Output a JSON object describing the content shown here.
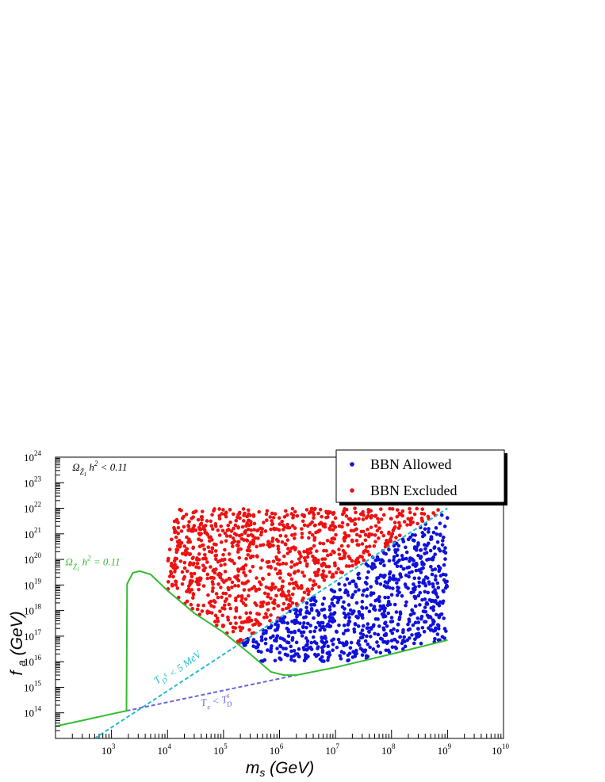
{
  "chart_data": {
    "type": "scatter",
    "title": "",
    "xlabel": "m_s (GeV)",
    "ylabel": "f_a (GeV)",
    "x_scale": "log",
    "y_scale": "log",
    "xlim": [
      100,
      10000000000
    ],
    "ylim": [
      10000000000000,
      1e+24
    ],
    "grid": false,
    "legend_position": "top-right",
    "x_ticks": [
      {
        "base": "10",
        "exp": "3",
        "value": 1000
      },
      {
        "base": "10",
        "exp": "4",
        "value": 10000
      },
      {
        "base": "10",
        "exp": "5",
        "value": 100000
      },
      {
        "base": "10",
        "exp": "6",
        "value": 1000000
      },
      {
        "base": "10",
        "exp": "7",
        "value": 10000000
      },
      {
        "base": "10",
        "exp": "8",
        "value": 100000000
      },
      {
        "base": "10",
        "exp": "9",
        "value": 1000000000
      },
      {
        "base": "10",
        "exp": "10",
        "value": 10000000000
      }
    ],
    "y_ticks": [
      {
        "base": "10",
        "exp": "14",
        "value": 100000000000000.0
      },
      {
        "base": "10",
        "exp": "15",
        "value": 1000000000000000.0
      },
      {
        "base": "10",
        "exp": "16",
        "value": 1e+16
      },
      {
        "base": "10",
        "exp": "17",
        "value": 1e+17
      },
      {
        "base": "10",
        "exp": "18",
        "value": 1e+18
      },
      {
        "base": "10",
        "exp": "19",
        "value": 1e+19
      },
      {
        "base": "10",
        "exp": "20",
        "value": 1e+20
      },
      {
        "base": "10",
        "exp": "21",
        "value": 1e+21
      },
      {
        "base": "10",
        "exp": "22",
        "value": 1e+22
      },
      {
        "base": "10",
        "exp": "23",
        "value": 1e+23
      },
      {
        "base": "10",
        "exp": "24",
        "value": 1e+24
      }
    ],
    "colors": {
      "allowed": "#1010dd",
      "excluded": "#ee1111",
      "relic_curve": "#33bb33",
      "td_line": "#22bbcc",
      "te_line": "#6666dd"
    },
    "series": [
      {
        "name": "BBN Allowed",
        "marker": "dot",
        "color": "#1010dd",
        "region": {
          "x_range": [
            200000,
            1000000000
          ],
          "y_range": [
            1e+16,
            1e+22
          ],
          "lower_boundary": "relic_curve",
          "upper_boundary": "td_line"
        }
      },
      {
        "name": "BBN Excluded",
        "marker": "dot",
        "color": "#ee1111",
        "region": {
          "x_range": [
            10000,
            1000000000
          ],
          "y_range": [
            1e+16,
            1e+22
          ],
          "lower_boundary": "relic_curve"
        }
      }
    ],
    "curves": {
      "relic": {
        "line_style": "solid",
        "color": "#33bb33",
        "points": [
          [
            100,
            30000000000000.0
          ],
          [
            300,
            50000000000000.0
          ],
          [
            1000,
            90000000000000.0
          ],
          [
            1850,
            120000000000000.0
          ],
          [
            1900,
            1.1e+19
          ],
          [
            2400,
            3e+19
          ],
          [
            3200,
            3.5e+19
          ],
          [
            5000,
            2.6e+19
          ],
          [
            10000,
            6e+18
          ],
          [
            30000,
            8e+17
          ],
          [
            100000,
            1.4e+17
          ],
          [
            300000,
            2e+16
          ],
          [
            700000,
            4000000000000000.0
          ],
          [
            1200000,
            3000000000000000.0
          ],
          [
            2000000,
            3000000000000000.0
          ],
          [
            10000000,
            6000000000000000.0
          ],
          [
            100000000,
            2e+16
          ],
          [
            1000000000,
            7e+16
          ]
        ]
      },
      "td": {
        "line_style": "dashed",
        "color": "#22bbcc",
        "points": [
          [
            500,
            10000000000000.0
          ],
          [
            1000000000,
            1e+22
          ]
        ]
      },
      "te": {
        "line_style": "dashed",
        "color": "#6666dd",
        "points": [
          [
            1850,
            120000000000000.0
          ],
          [
            2000000,
            3000000000000000.0
          ]
        ]
      }
    },
    "annotations": [
      {
        "base": "Ω",
        "sub": "Z̃",
        "subsub": "1",
        "tail1": " h",
        "sup": "2",
        "tail2": " < 0.11",
        "at": [
          200,
          3e+23
        ],
        "color": "#000000",
        "rotate": 0
      },
      {
        "base": "Ω",
        "sub": "Z̃",
        "subsub": "1",
        "tail1": " h",
        "sup": "2",
        "tail2": " = 0.11",
        "at": [
          150,
          6e+19
        ],
        "color": "#33bb33",
        "rotate": 0
      },
      {
        "base": "T",
        "sub": "D",
        "subsub": "",
        "tail1": "",
        "sup": "s",
        "tail2": " < 5 MeV",
        "at": [
          6500,
          1300000000000000.0
        ],
        "color": "#22bbcc",
        "rotate": -37
      },
      {
        "base": "T",
        "sub": "e",
        "subsub": "",
        "tail1": " < T",
        "sup": "s",
        "tail2": "",
        "tail_sub": "D",
        "at": [
          40000,
          180000000000000.0
        ],
        "color": "#6666dd",
        "rotate": -8
      }
    ]
  }
}
